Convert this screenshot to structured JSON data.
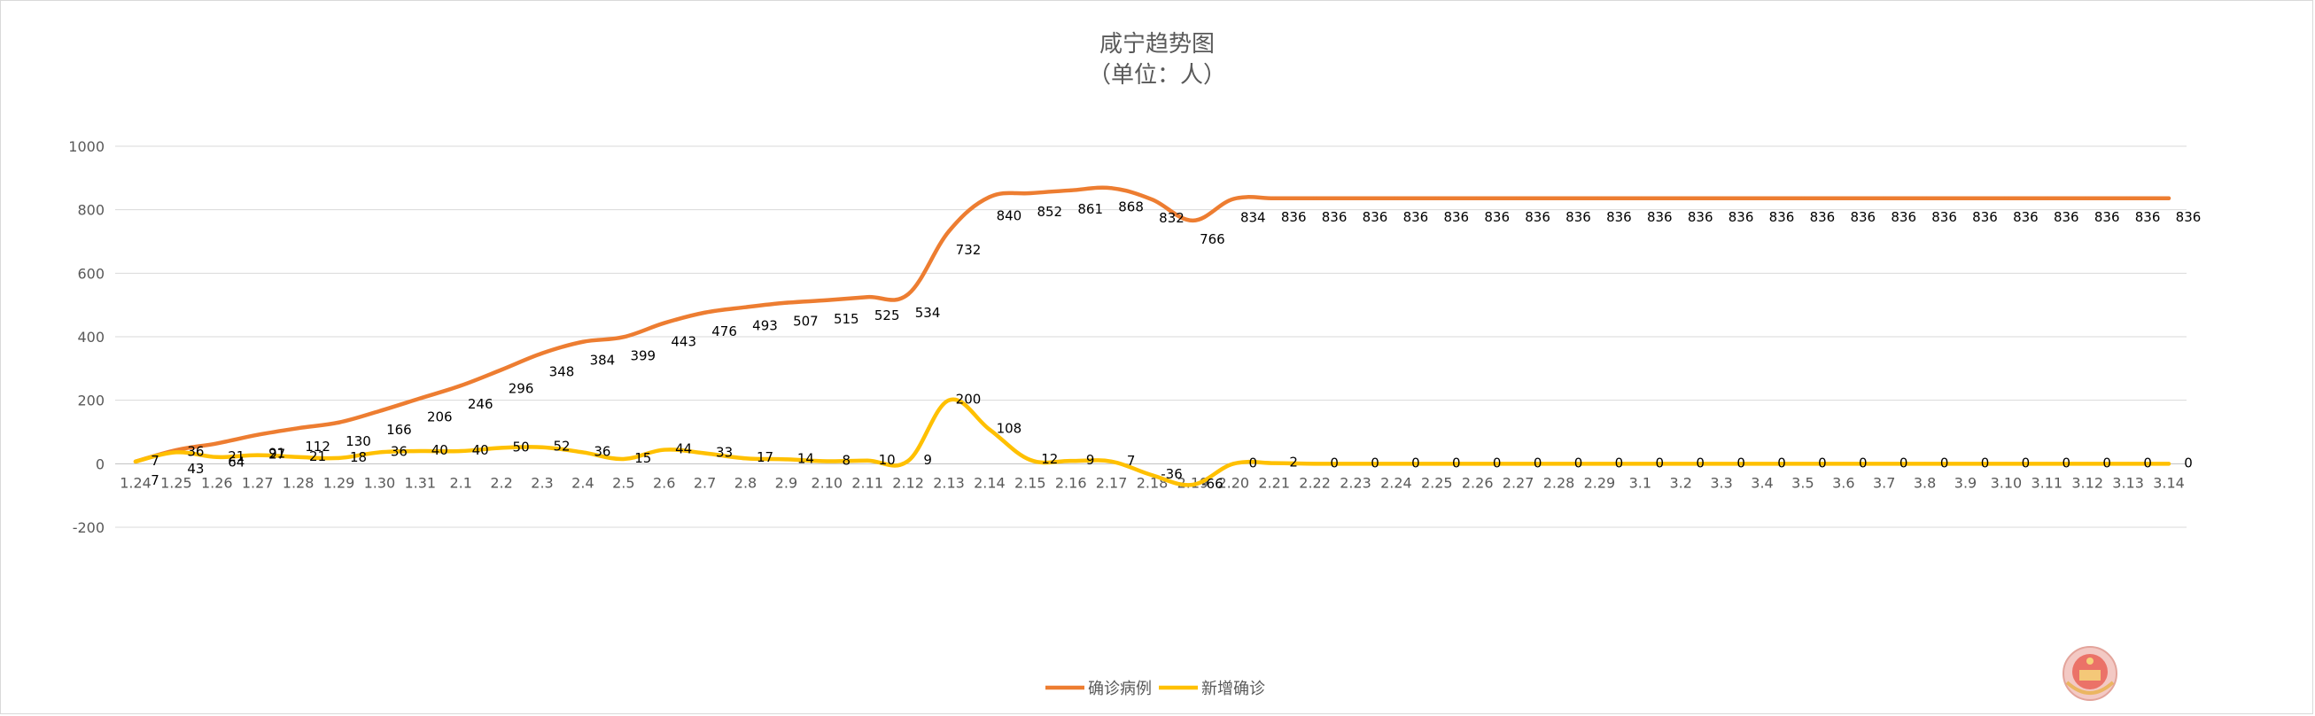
{
  "chart_data": {
    "type": "line",
    "title": "咸宁趋势图",
    "subtitle": "（单位：人）",
    "xlabel": "",
    "ylabel": "",
    "ylim": [
      -200,
      1000
    ],
    "yticks": [
      -200,
      0,
      200,
      400,
      600,
      800,
      1000
    ],
    "grid": true,
    "legend_position": "bottom",
    "categories": [
      "1.24",
      "1.25",
      "1.26",
      "1.27",
      "1.28",
      "1.29",
      "1.30",
      "1.31",
      "2.1",
      "2.2",
      "2.3",
      "2.4",
      "2.5",
      "2.6",
      "2.7",
      "2.8",
      "2.9",
      "2.10",
      "2.11",
      "2.12",
      "2.13",
      "2.14",
      "2.15",
      "2.16",
      "2.17",
      "2.18",
      "2.19",
      "2.20",
      "2.21",
      "2.22",
      "2.23",
      "2.24",
      "2.25",
      "2.26",
      "2.27",
      "2.28",
      "2.29",
      "3.1",
      "3.2",
      "3.3",
      "3.4",
      "3.5",
      "3.6",
      "3.7",
      "3.8",
      "3.9",
      "3.10",
      "3.11",
      "3.12",
      "3.13",
      "3.14"
    ],
    "series": [
      {
        "name": "确诊病例",
        "color": "#ED7D31",
        "values": [
          7,
          43,
          64,
          91,
          112,
          130,
          166,
          206,
          246,
          296,
          348,
          384,
          399,
          443,
          476,
          493,
          507,
          515,
          525,
          534,
          732,
          840,
          852,
          861,
          868,
          832,
          766,
          834,
          836,
          836,
          836,
          836,
          836,
          836,
          836,
          836,
          836,
          836,
          836,
          836,
          836,
          836,
          836,
          836,
          836,
          836,
          836,
          836,
          836,
          836,
          836
        ]
      },
      {
        "name": "新增确诊",
        "color": "#FFC000",
        "values": [
          7,
          36,
          21,
          27,
          21,
          18,
          36,
          40,
          40,
          50,
          52,
          36,
          15,
          44,
          33,
          17,
          14,
          8,
          10,
          9,
          200,
          108,
          12,
          9,
          7,
          -36,
          -66,
          0,
          2,
          0,
          0,
          0,
          0,
          0,
          0,
          0,
          0,
          0,
          0,
          0,
          0,
          0,
          0,
          0,
          0,
          0,
          0,
          0,
          0,
          0,
          0
        ]
      }
    ]
  },
  "emblem": {
    "name": "national-emblem"
  }
}
